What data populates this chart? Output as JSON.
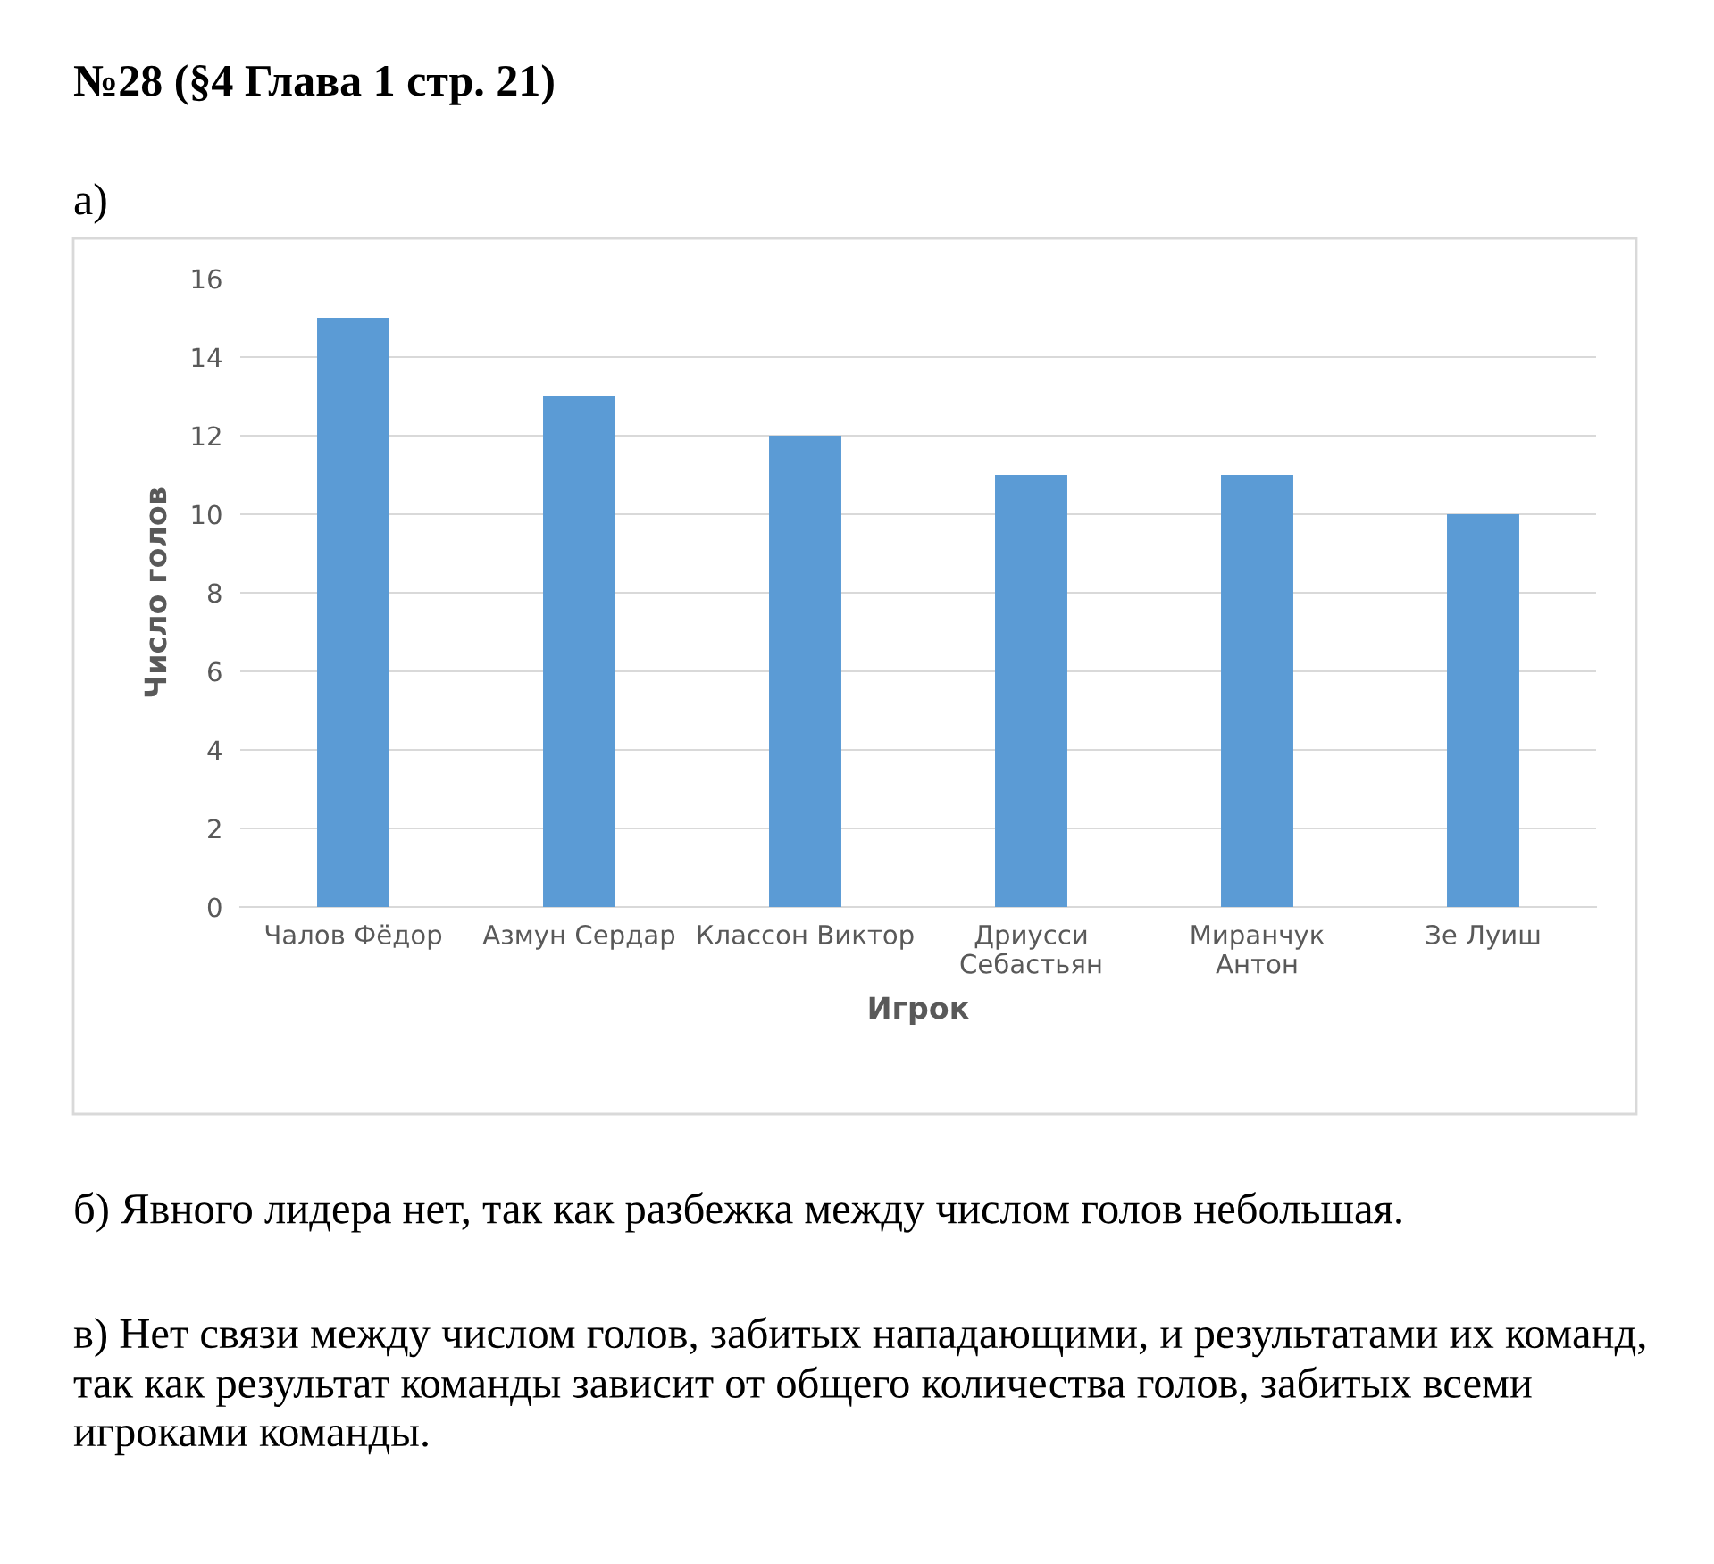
{
  "chart_data": {
    "type": "bar",
    "title": "№28 (§4 Глава 1 стр. 21)",
    "xlabel": "Игрок",
    "ylabel": "Число голов",
    "categories": [
      "Чалов Фёдор",
      "Азмун Сердар",
      "Классон Виктор",
      "Дриусси\nСебастьян",
      "Миранчук\nАнтон",
      "Зе Луиш"
    ],
    "values": [
      15,
      13,
      12,
      11,
      11,
      10
    ],
    "color": "#5b9bd5",
    "ylim": [
      0,
      16
    ],
    "yticks": [
      0,
      2,
      4,
      6,
      8,
      10,
      12,
      14,
      16
    ],
    "grid": "y",
    "legend": false,
    "annotations": [
      "а)",
      "б) Явного лидера нет, так как разбежка между числом голов небольшая.",
      "в) Нет связи между числом голов, забитых нападающими, и результатами их команд, так как результат команды зависит от общего количества голов, забитых всеми игроками команды."
    ]
  }
}
